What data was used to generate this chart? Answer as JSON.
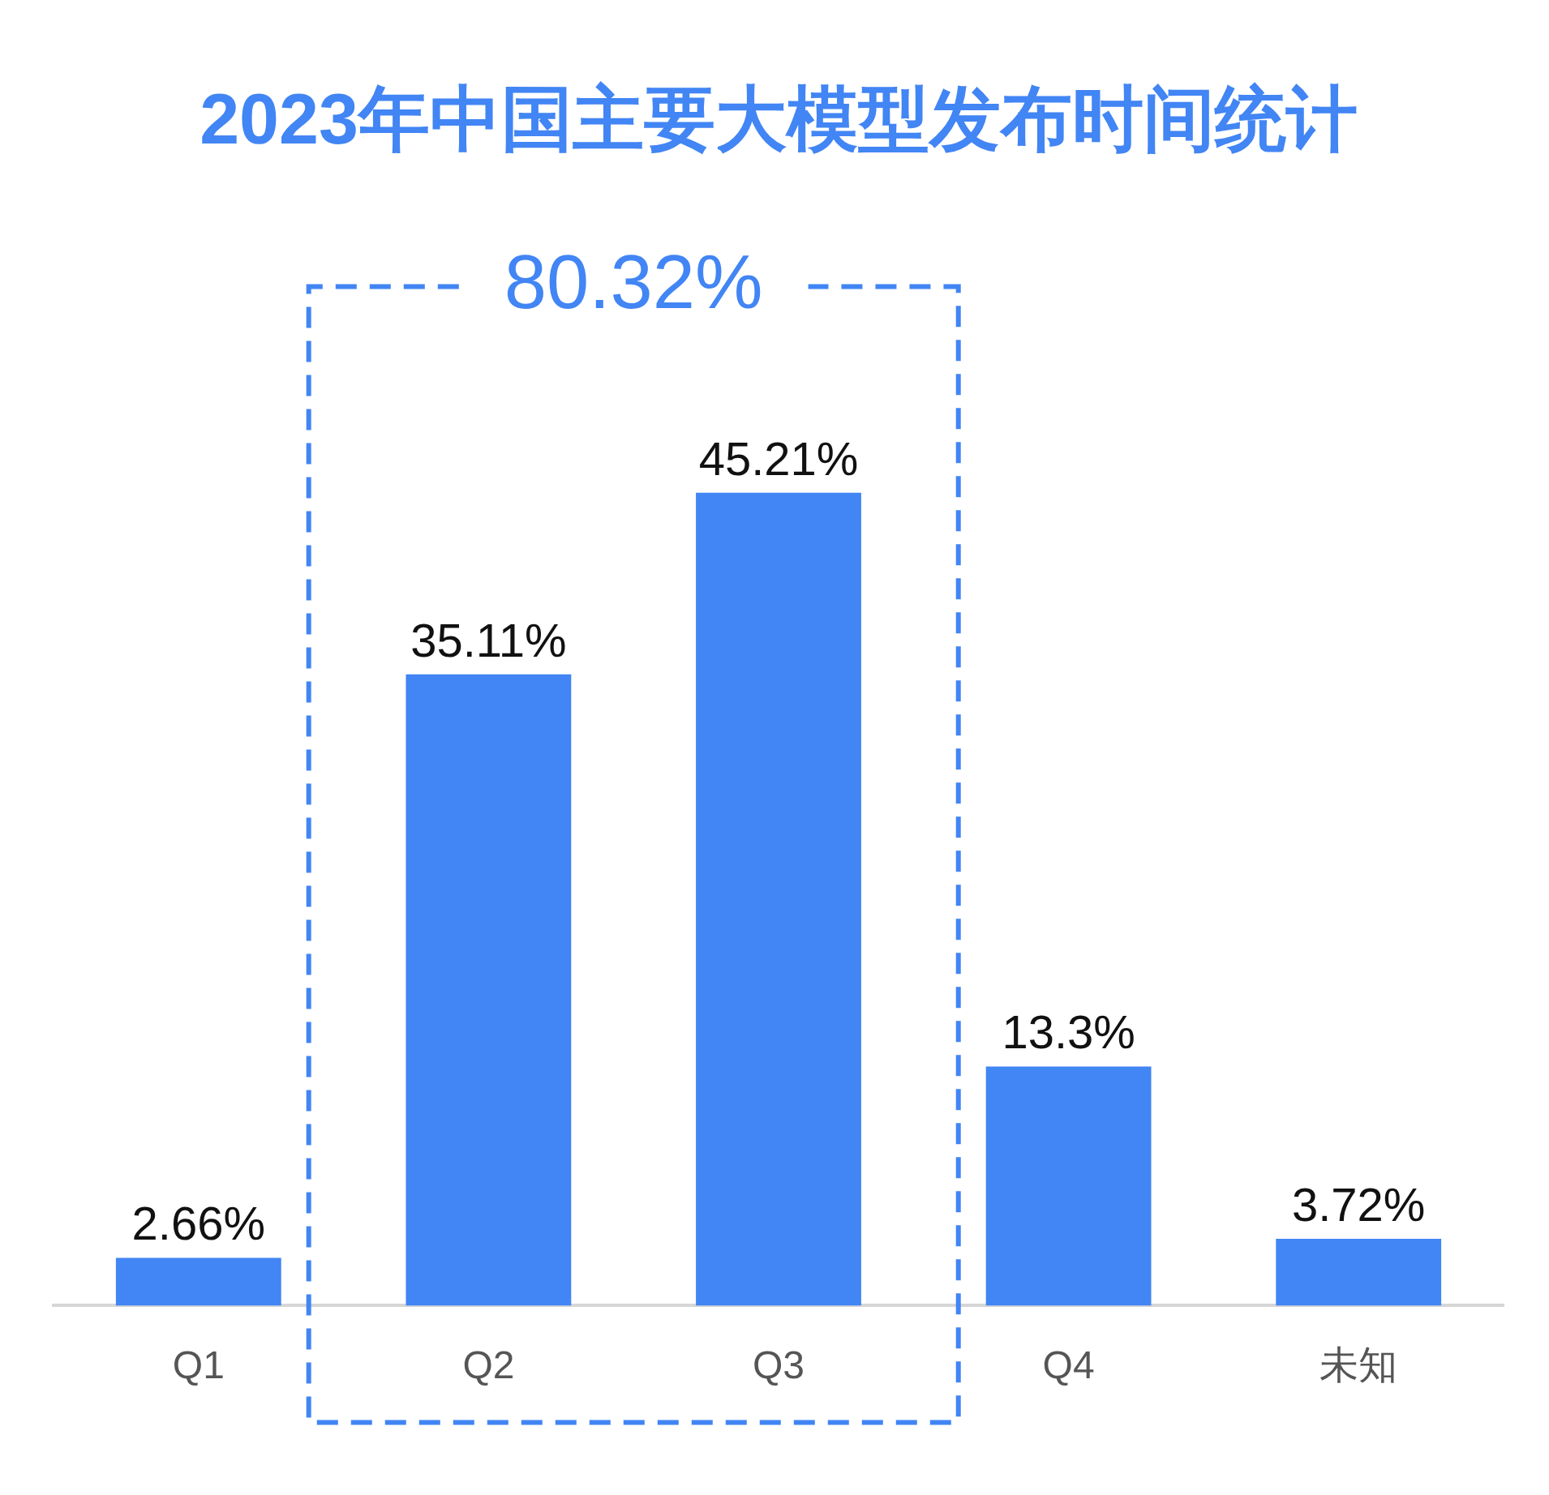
{
  "chart_data": {
    "type": "bar",
    "title": "2023年中国主要大模型发布时间统计",
    "categories": [
      "Q1",
      "Q2",
      "Q3",
      "Q4",
      "未知"
    ],
    "values": [
      2.66,
      35.11,
      45.21,
      13.3,
      3.72
    ],
    "color": "#4285f4",
    "value_labels": [
      "2.66%",
      "35.11%",
      "45.21%",
      "13.3%",
      "3.72%"
    ],
    "annotations": [
      "80.32%"
    ]
  }
}
